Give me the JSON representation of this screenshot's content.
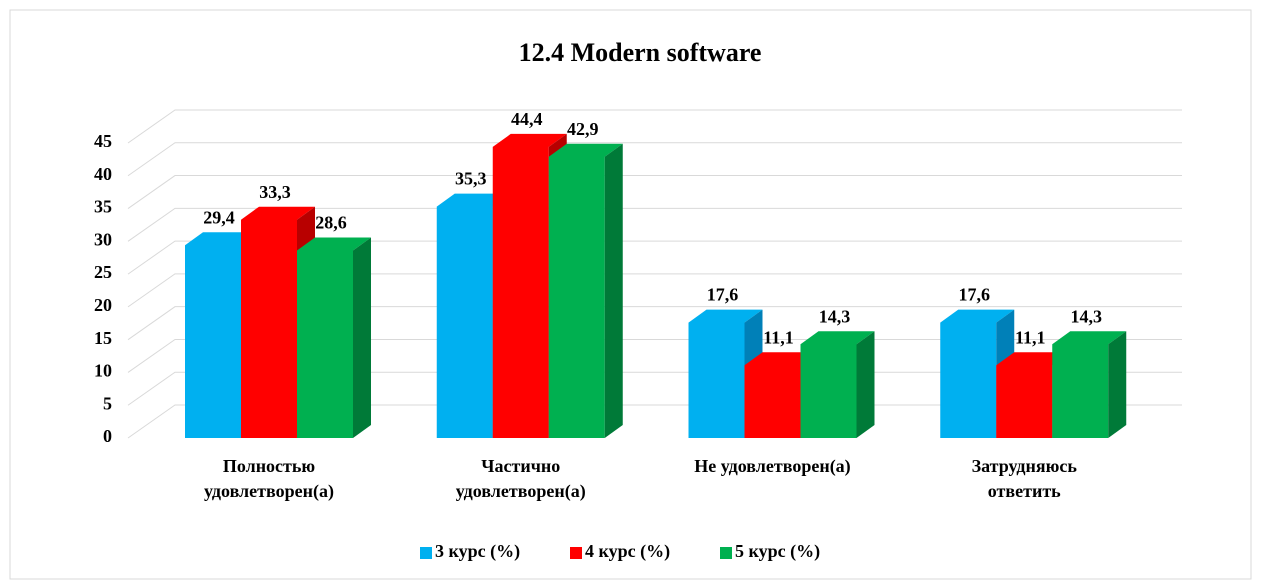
{
  "chart_data": {
    "type": "bar3d",
    "title": "12.4 Modern software",
    "categories": [
      "Полностью\nудовлетворен(а)",
      "Частично\nудовлетворен(а)",
      "Не удовлетворен(а)",
      "Затрудняюсь\nответить"
    ],
    "series": [
      {
        "name": "3 курс (%)",
        "color": "#00b0f0",
        "side": "#0080b8",
        "values": [
          29.4,
          35.3,
          17.6,
          17.6
        ],
        "value_labels": [
          "29,4",
          "35,3",
          "17,6",
          "17,6"
        ]
      },
      {
        "name": "4 курс (%)",
        "color": "#ff0000",
        "side": "#b80000",
        "values": [
          33.3,
          44.4,
          11.1,
          11.1
        ],
        "value_labels": [
          "33,3",
          "44,4",
          "11,1",
          "11,1"
        ]
      },
      {
        "name": "5 курс (%)",
        "color": "#00b050",
        "side": "#007a38",
        "values": [
          28.6,
          42.9,
          14.3,
          14.3
        ],
        "value_labels": [
          "28,6",
          "42,9",
          "14,3",
          "14,3"
        ]
      }
    ],
    "ylim": [
      0,
      45
    ],
    "yticks": [
      0,
      5,
      10,
      15,
      20,
      25,
      30,
      35,
      40,
      45
    ],
    "grid": true,
    "legend": "bottom"
  }
}
